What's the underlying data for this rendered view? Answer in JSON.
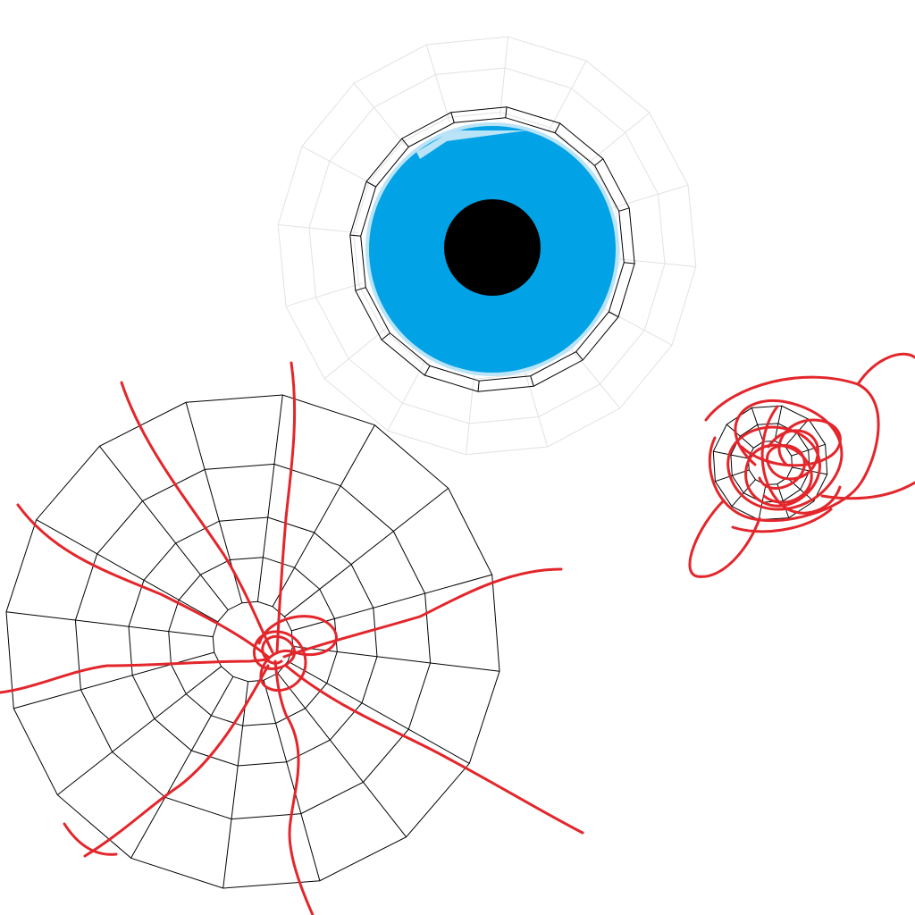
{
  "colors": {
    "background": "#ffffff",
    "iris": "#02a2e6",
    "iris_highlight": "#b9e3f7",
    "pupil": "#000000",
    "mesh_line": "#000000",
    "faint_mesh": "#e2e2e2",
    "vein": "#e3262b"
  },
  "objects": [
    {
      "name": "blue-eye",
      "kind": "eye"
    },
    {
      "name": "veined-eye",
      "kind": "wireframe sphere with red veins"
    },
    {
      "name": "scribble-eye",
      "kind": "small sphere with red scribble"
    }
  ]
}
